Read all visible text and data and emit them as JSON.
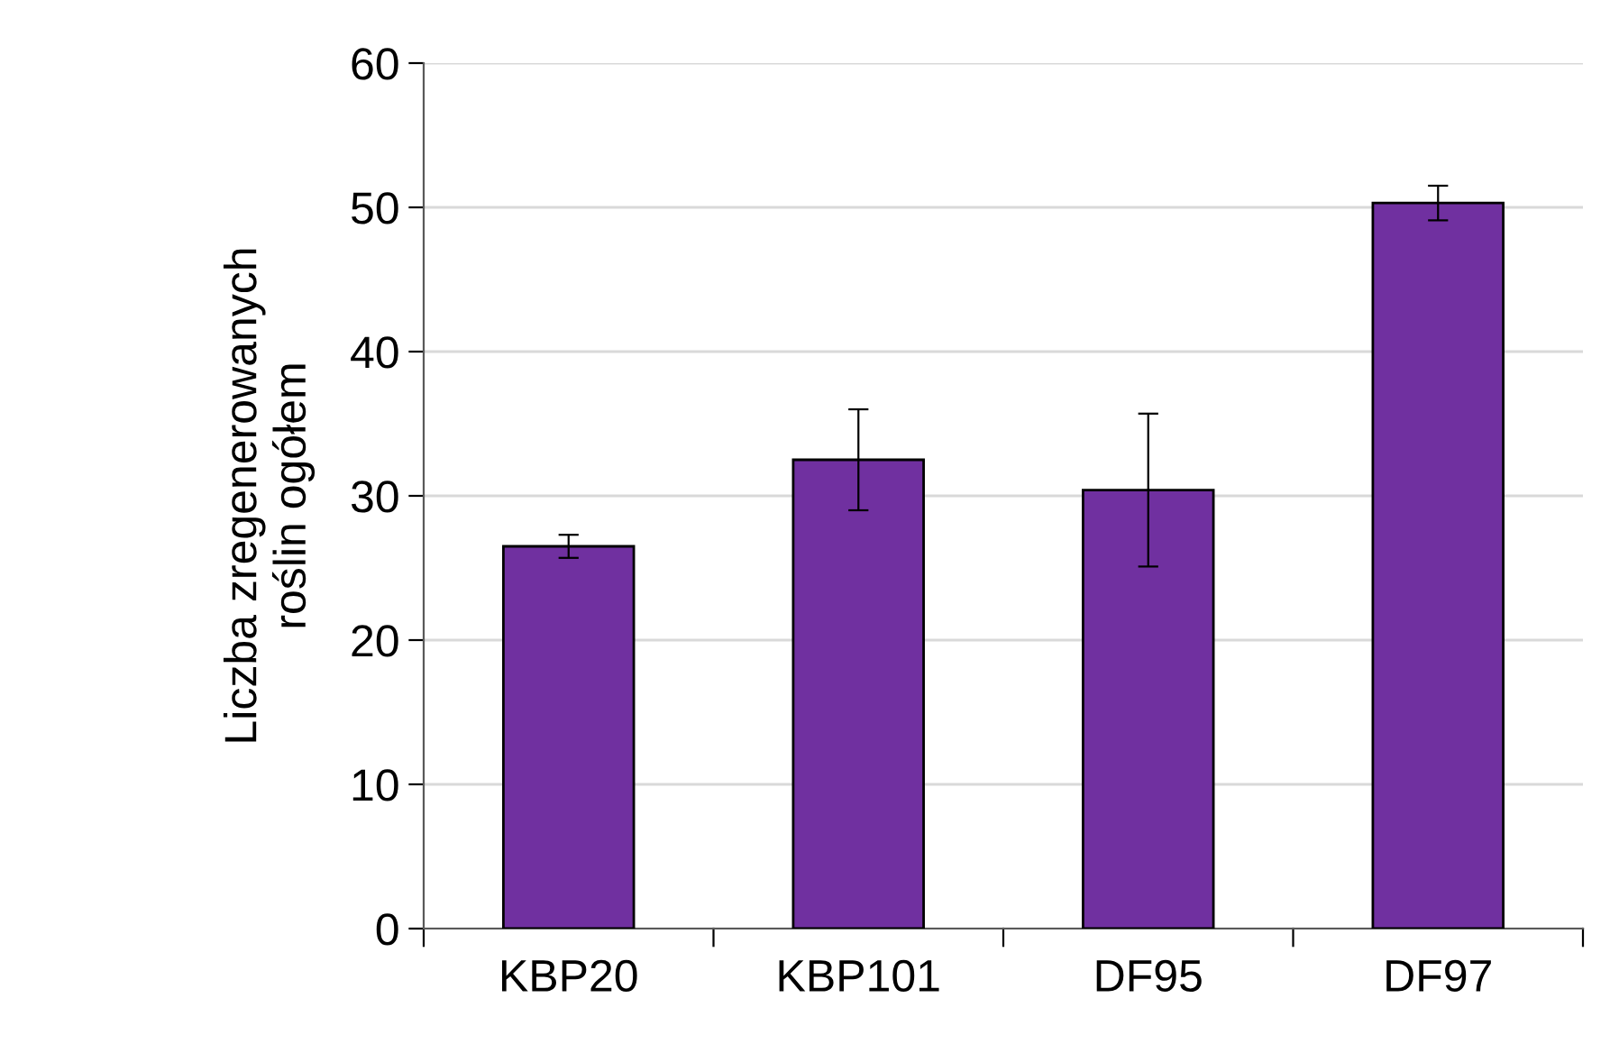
{
  "chart_data": {
    "type": "bar",
    "ylabel": "Liczba zregenerowanych\nroślin ogółem",
    "categories": [
      "KBP20",
      "KBP101",
      "DF95",
      "DF97"
    ],
    "values": [
      26.5,
      32.5,
      30.4,
      50.3
    ],
    "errors": [
      0.8,
      3.5,
      5.3,
      1.2
    ],
    "color": "#7030a0",
    "ylim": [
      0,
      60
    ],
    "yticks": [
      0,
      10,
      20,
      30,
      40,
      50,
      60
    ],
    "grid": "y",
    "legend": false
  }
}
